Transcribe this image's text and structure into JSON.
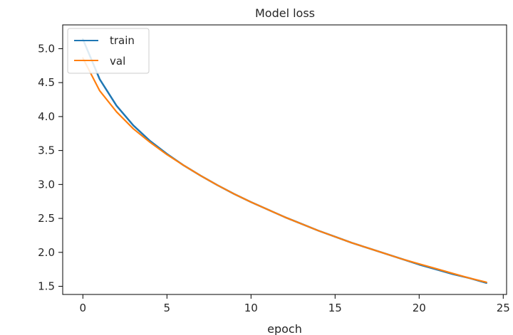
{
  "chart_data": {
    "type": "line",
    "title": "Model loss",
    "xlabel": "epoch",
    "ylabel": "",
    "xlim": [
      -1.2,
      25.2
    ],
    "ylim": [
      1.38,
      5.35
    ],
    "xticks": [
      0,
      5,
      10,
      15,
      20,
      25
    ],
    "yticks": [
      1.5,
      2.0,
      2.5,
      3.0,
      3.5,
      4.0,
      4.5,
      5.0
    ],
    "xtick_labels": [
      "0",
      "5",
      "10",
      "15",
      "20",
      "25"
    ],
    "ytick_labels": [
      "1.5",
      "2.0",
      "2.5",
      "3.0",
      "3.5",
      "4.0",
      "4.5",
      "5.0"
    ],
    "grid": false,
    "legend_position": "top-left",
    "x": [
      0,
      1,
      2,
      3,
      4,
      5,
      6,
      7,
      8,
      9,
      10,
      11,
      12,
      13,
      14,
      15,
      16,
      17,
      18,
      19,
      20,
      21,
      22,
      23,
      24
    ],
    "series": [
      {
        "name": "train",
        "color": "#1f77b4",
        "values": [
          5.14,
          4.55,
          4.16,
          3.87,
          3.64,
          3.45,
          3.28,
          3.13,
          2.99,
          2.86,
          2.74,
          2.63,
          2.52,
          2.42,
          2.32,
          2.23,
          2.14,
          2.06,
          1.98,
          1.9,
          1.82,
          1.75,
          1.68,
          1.62,
          1.55
        ]
      },
      {
        "name": "val",
        "color": "#ff7f0e",
        "values": [
          4.86,
          4.38,
          4.07,
          3.82,
          3.62,
          3.44,
          3.28,
          3.13,
          2.99,
          2.86,
          2.74,
          2.63,
          2.52,
          2.42,
          2.32,
          2.23,
          2.14,
          2.06,
          1.98,
          1.9,
          1.83,
          1.76,
          1.69,
          1.62,
          1.56
        ]
      }
    ]
  }
}
